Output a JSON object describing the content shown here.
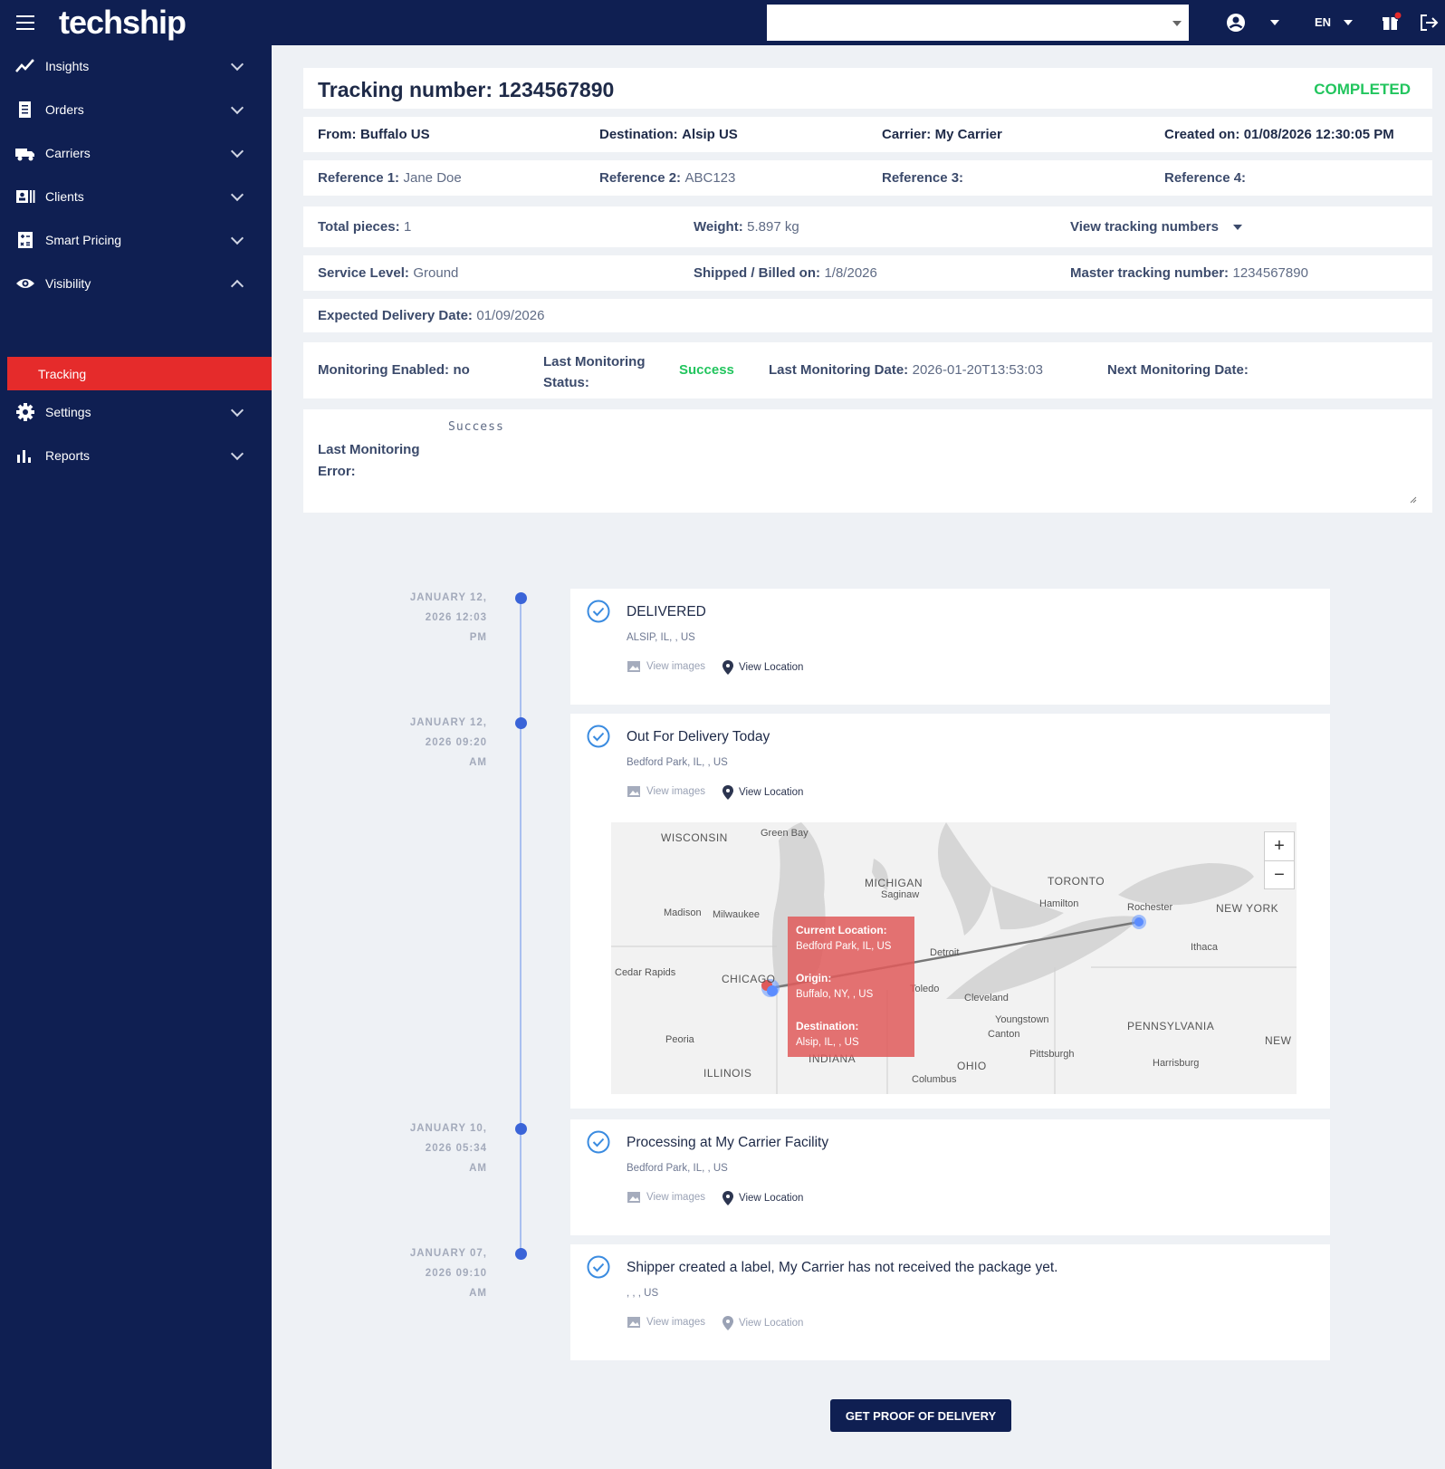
{
  "topbar": {
    "logo": "techship",
    "company_select_value": "",
    "language": "EN"
  },
  "sidebar": {
    "items": [
      {
        "label": "Insights",
        "icon": "insights-icon"
      },
      {
        "label": "Orders",
        "icon": "orders-icon"
      },
      {
        "label": "Carriers",
        "icon": "truck-icon"
      },
      {
        "label": "Clients",
        "icon": "clients-icon"
      },
      {
        "label": "Smart Pricing",
        "icon": "calculator-icon"
      },
      {
        "label": "Visibility",
        "icon": "eye-icon"
      },
      {
        "label": "Settings",
        "icon": "gear-icon"
      },
      {
        "label": "Reports",
        "icon": "bar-chart-icon"
      }
    ],
    "sub_active": "Tracking"
  },
  "header": {
    "title": "Tracking number: 1234567890",
    "status": "COMPLETED"
  },
  "summary": {
    "from_label": "From:",
    "from": "Buffalo US",
    "destination_label": "Destination:",
    "destination": "Alsip US",
    "carrier_label": "Carrier:",
    "carrier": "My Carrier",
    "created_label": "Created on:",
    "created": "01/08/2026 12:30:05 PM"
  },
  "references": {
    "ref1_label": "Reference 1:",
    "ref1": "Jane Doe",
    "ref2_label": "Reference 2:",
    "ref2": "ABC123",
    "ref3_label": "Reference 3:",
    "ref3": "",
    "ref4_label": "Reference 4:",
    "ref4": ""
  },
  "pieces": {
    "total_label": "Total pieces:",
    "total": "1",
    "weight_label": "Weight:",
    "weight": "5.897 kg",
    "view_tracking": "View tracking numbers"
  },
  "service": {
    "level_label": "Service Level:",
    "level": "Ground",
    "shipped_label": "Shipped / Billed on:",
    "shipped": "1/8/2026",
    "master_label": "Master tracking number:",
    "master": "1234567890"
  },
  "expected": {
    "label": "Expected Delivery Date:",
    "value": "01/09/2026"
  },
  "monitoring": {
    "enabled_label": "Monitoring Enabled:",
    "enabled": "no",
    "status_label_1": "Last Monitoring",
    "status_label_2": "Status:",
    "status": "Success",
    "date_label": "Last Monitoring Date:",
    "date": "2026-01-20T13:53:03",
    "next_label": "Next Monitoring Date:",
    "next": ""
  },
  "error": {
    "label_1": "Last Monitoring",
    "label_2": "Error:",
    "value": "Success"
  },
  "events": [
    {
      "date_1": "JANUARY 12,",
      "date_2": "2026 12:03",
      "date_3": "PM",
      "title": "DELIVERED",
      "location": "ALSIP, IL, , US",
      "view_images": "View images",
      "view_location": "View Location"
    },
    {
      "date_1": "JANUARY 12,",
      "date_2": "2026 09:20",
      "date_3": "AM",
      "title": "Out For Delivery Today",
      "location": "Bedford Park, IL, , US",
      "view_images": "View images",
      "view_location": "View Location"
    },
    {
      "date_1": "JANUARY 10,",
      "date_2": "2026 05:34",
      "date_3": "AM",
      "title": "Processing at My Carrier Facility",
      "location": "Bedford Park, IL, , US",
      "view_images": "View images",
      "view_location": "View Location"
    },
    {
      "date_1": "JANUARY 07,",
      "date_2": "2026 09:10",
      "date_3": "AM",
      "title": "Shipper created a label, My Carrier has not received the package yet.",
      "location": ", , , US",
      "view_images": "View images",
      "view_location": "View Location"
    }
  ],
  "map": {
    "popup": {
      "current_label": "Current Location:",
      "current": "Bedford Park, IL, US",
      "origin_label": "Origin:",
      "origin": "Buffalo, NY, , US",
      "destination_label": "Destination:",
      "destination": "Alsip, IL, , US"
    },
    "labels": [
      "WISCONSIN",
      "Green Bay",
      "MICHIGAN",
      "Saginaw",
      "TORONTO",
      "Hamilton",
      "Rochester",
      "NEW YORK",
      "Madison",
      "Milwaukee",
      "Detroit",
      "Ithaca",
      "Cedar Rapids",
      "CHICAGO",
      "Toledo",
      "Cleveland",
      "Youngstown",
      "Canton",
      "PENNSYLVANIA",
      "Peoria",
      "INDIANA",
      "OHIO",
      "Pittsburgh",
      "Harrisburg",
      "ILLINOIS",
      "Columbus",
      "NEW"
    ],
    "zoom_in": "+",
    "zoom_out": "−"
  },
  "pod_button": "GET PROOF OF DELIVERY",
  "colors": {
    "nav_bg": "#0f1f52",
    "accent_red": "#e52b2b",
    "success": "#22c55e",
    "timeline": "#3a64d8"
  }
}
